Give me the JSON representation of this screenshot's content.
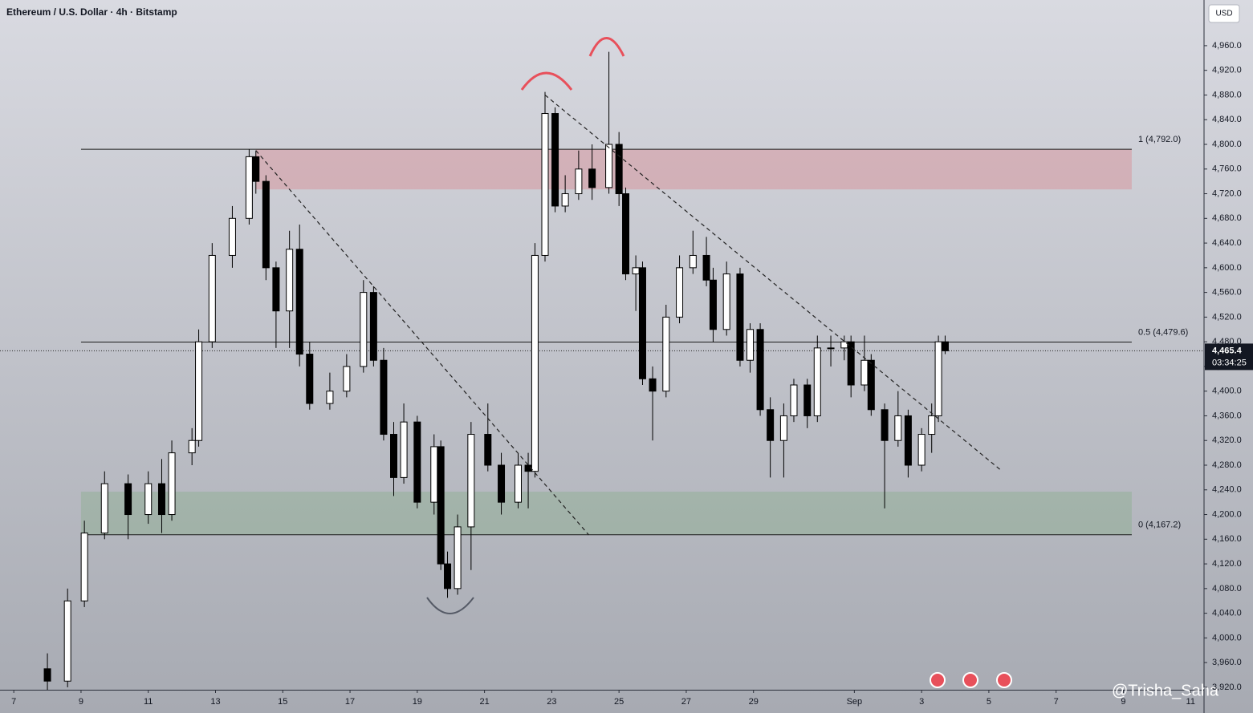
{
  "chart_data": {
    "type": "candlestick",
    "title": "Ethereum / U.S. Dollar · 4h · Bitstamp",
    "currency": "USD",
    "xlim": [
      6.59,
      42.4
    ],
    "xticks": [
      7,
      9,
      11,
      13,
      15,
      17,
      19,
      21,
      23,
      25,
      27,
      29,
      {
        "value": 32,
        "label": "Sep"
      },
      {
        "value": 34,
        "label": "3"
      },
      {
        "value": 36,
        "label": "5"
      },
      {
        "value": 38,
        "label": "7"
      },
      {
        "value": 40,
        "label": "9"
      },
      {
        "value": 42,
        "label": "11"
      }
    ],
    "ylim": [
      3916,
      5034
    ],
    "yticks": [
      {
        "value": 3920,
        "label": "3,920.0"
      },
      {
        "value": 3960,
        "label": "3,960.0"
      },
      {
        "value": 4000,
        "label": "4,000.0"
      },
      {
        "value": 4040,
        "label": "4,040.0"
      },
      {
        "value": 4080,
        "label": "4,080.0"
      },
      {
        "value": 4120,
        "label": "4,120.0"
      },
      {
        "value": 4160,
        "label": "4,160.0"
      },
      {
        "value": 4200,
        "label": "4,200.0"
      },
      {
        "value": 4240,
        "label": "4,240.0"
      },
      {
        "value": 4280,
        "label": "4,280.0"
      },
      {
        "value": 4320,
        "label": "4,320.0"
      },
      {
        "value": 4360,
        "label": "4,360.0"
      },
      {
        "value": 4400,
        "label": "4,400.0"
      },
      {
        "value": 4440,
        "label": "4,440.0"
      },
      {
        "value": 4480,
        "label": "4,480.0"
      },
      {
        "value": 4520,
        "label": "4,520.0"
      },
      {
        "value": 4560,
        "label": "4,560.0"
      },
      {
        "value": 4600,
        "label": "4,600.0"
      },
      {
        "value": 4640,
        "label": "4,640.0"
      },
      {
        "value": 4680,
        "label": "4,680.0"
      },
      {
        "value": 4720,
        "label": "4,720.0"
      },
      {
        "value": 4760,
        "label": "4,760.0"
      },
      {
        "value": 4800,
        "label": "4,800.0"
      },
      {
        "value": 4840,
        "label": "4,840.0"
      },
      {
        "value": 4880,
        "label": "4,880.0"
      },
      {
        "value": 4920,
        "label": "4,920.0"
      },
      {
        "value": 4960,
        "label": "4,960.0"
      }
    ],
    "up_color": "#ffffff",
    "down_color": "#000000",
    "x": [
      8.0,
      8.6,
      9.1,
      9.7,
      10.4,
      11.0,
      11.4,
      11.7,
      12.3,
      12.5,
      12.9,
      13.5,
      14.0,
      14.2,
      14.5,
      14.8,
      15.2,
      15.5,
      15.8,
      16.4,
      16.9,
      17.4,
      17.7,
      18.0,
      18.3,
      18.6,
      19.0,
      19.5,
      19.7,
      19.9,
      20.2,
      20.6,
      21.1,
      21.5,
      22.0,
      22.3,
      22.5,
      22.8,
      23.1,
      23.4,
      23.8,
      24.2,
      24.7,
      25.0,
      25.2,
      25.5,
      25.7,
      26.0,
      26.4,
      26.8,
      27.2,
      27.6,
      27.8,
      28.2,
      28.6,
      28.9,
      29.2,
      29.5,
      29.9,
      30.2,
      30.6,
      30.9,
      31.3,
      31.7,
      31.9,
      32.3,
      32.5,
      32.9,
      33.3,
      33.6,
      34.0,
      34.3,
      34.5,
      34.7
    ],
    "open": [
      3950,
      3930,
      4060,
      4170,
      4250,
      4200,
      4250,
      4200,
      4300,
      4320,
      4480,
      4620,
      4680,
      4780,
      4740,
      4600,
      4530,
      4630,
      4460,
      4380,
      4400,
      4440,
      4560,
      4450,
      4330,
      4260,
      4350,
      4220,
      4310,
      4120,
      4080,
      4180,
      4330,
      4280,
      4220,
      4280,
      4270,
      4620,
      4850,
      4700,
      4720,
      4760,
      4730,
      4800,
      4720,
      4590,
      4600,
      4420,
      4400,
      4520,
      4600,
      4620,
      4580,
      4500,
      4590,
      4450,
      4500,
      4370,
      4320,
      4360,
      4410,
      4360,
      4470,
      4470,
      4480,
      4410,
      4450,
      4370,
      4320,
      4360,
      4280,
      4330,
      4360,
      4480
    ],
    "high": [
      3975,
      4080,
      4190,
      4270,
      4265,
      4270,
      4290,
      4320,
      4340,
      4500,
      4640,
      4700,
      4792,
      4790,
      4750,
      4610,
      4660,
      4670,
      4480,
      4430,
      4460,
      4580,
      4570,
      4470,
      4350,
      4380,
      4360,
      4330,
      4320,
      4140,
      4200,
      4350,
      4380,
      4300,
      4300,
      4300,
      4640,
      4885,
      4860,
      4750,
      4790,
      4800,
      4950,
      4820,
      4730,
      4620,
      4610,
      4440,
      4540,
      4620,
      4660,
      4650,
      4600,
      4610,
      4600,
      4510,
      4510,
      4390,
      4380,
      4420,
      4420,
      4490,
      4490,
      4490,
      4490,
      4490,
      4460,
      4380,
      4400,
      4370,
      4340,
      4380,
      4490,
      4490
    ],
    "low": [
      3915,
      3920,
      4050,
      4160,
      4160,
      4185,
      4170,
      4190,
      4280,
      4310,
      4470,
      4600,
      4670,
      4720,
      4580,
      4470,
      4470,
      4440,
      4370,
      4370,
      4390,
      4430,
      4440,
      4320,
      4230,
      4250,
      4210,
      4200,
      4110,
      4065,
      4070,
      4110,
      4270,
      4200,
      4210,
      4210,
      4260,
      4610,
      4690,
      4690,
      4710,
      4710,
      4720,
      4700,
      4580,
      4530,
      4410,
      4320,
      4390,
      4510,
      4590,
      4570,
      4480,
      4490,
      4440,
      4430,
      4360,
      4260,
      4260,
      4350,
      4340,
      4350,
      4440,
      4450,
      4390,
      4400,
      4360,
      4210,
      4310,
      4260,
      4270,
      4300,
      4350,
      4460
    ],
    "close": [
      3930,
      4060,
      4170,
      4250,
      4200,
      4250,
      4200,
      4300,
      4320,
      4480,
      4620,
      4680,
      4780,
      4740,
      4600,
      4530,
      4630,
      4460,
      4380,
      4400,
      4440,
      4560,
      4450,
      4330,
      4260,
      4350,
      4220,
      4310,
      4120,
      4080,
      4180,
      4330,
      4280,
      4220,
      4280,
      4270,
      4620,
      4850,
      4700,
      4720,
      4760,
      4730,
      4800,
      4720,
      4590,
      4600,
      4420,
      4400,
      4520,
      4600,
      4620,
      4580,
      4500,
      4590,
      4450,
      4500,
      4370,
      4320,
      4360,
      4410,
      4360,
      4470,
      4470,
      4480,
      4410,
      4450,
      4370,
      4320,
      4360,
      4280,
      4330,
      4360,
      4480,
      4465.4
    ],
    "zones": [
      {
        "from": 4727,
        "to": 4792,
        "start": 14.2,
        "end": 40.25,
        "color": "rgba(220,120,130,0.35)"
      },
      {
        "from": 4167.2,
        "to": 4237,
        "start": 9.0,
        "end": 40.25,
        "color": "rgba(120,170,120,0.3)"
      }
    ],
    "levels": [
      {
        "value": 4792.0,
        "label": "1 (4,792.0)",
        "start": 9.0,
        "end": 40.25
      },
      {
        "value": 4479.6,
        "label": "0.5 (4,479.6)",
        "start": 9.0,
        "end": 40.25
      },
      {
        "value": 4167.2,
        "label": "0 (4,167.2)",
        "start": 9.0,
        "end": 40.25
      }
    ],
    "trendlines": [
      {
        "from": [
          14.2,
          4790
        ],
        "to": [
          24.1,
          4167
        ]
      },
      {
        "from": [
          22.8,
          4880
        ],
        "to": [
          36.4,
          4270
        ]
      }
    ],
    "last_price": {
      "value": 4465.4,
      "label": "4,465.4",
      "countdown": "03:34:25"
    },
    "watermark": "@Trisha_Saha"
  }
}
